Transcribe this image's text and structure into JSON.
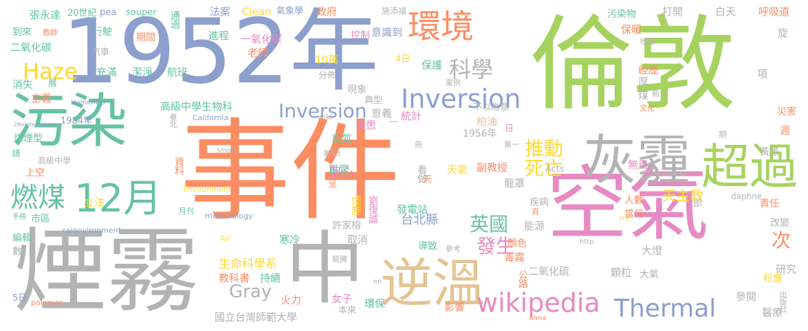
{
  "palette": {
    "blue": "#8c9fcd",
    "green": "#a6d35f",
    "orange": "#fc8d62",
    "pink": "#e68ac3",
    "teal": "#66c2a5",
    "yellow": "#fed92f",
    "tan": "#e5c494",
    "gray": "#b3b3b3"
  },
  "words": [
    "事件",
    "倫敦",
    "1952年",
    "空氣",
    "煙霧",
    "中",
    "污染",
    "逆溫",
    "灰霾",
    "超過",
    "環境",
    "12月",
    "燃煤",
    "wikipedia",
    "Inversion",
    "Thermal",
    "Haze",
    "科學",
    "推動",
    "死亡",
    "英國",
    "發生",
    "Gray",
    "次",
    "天主教",
    "台北縣",
    "聖心",
    "Inversion",
    "高級中學生物科",
    "生命科學系",
    "張永達",
    "20世紀",
    "pea",
    "souper",
    "通過",
    "法案",
    "Clean",
    "氣象學",
    "施添福",
    "政府",
    "污染物",
    "打開",
    "白天",
    "呼吸道",
    "到來",
    "教師",
    "行駛",
    "期間",
    "進程",
    "一氧化碳",
    "控制",
    "意識到",
    "保暖",
    "旋",
    "二氧化碳",
    "汽車",
    "老師",
    "地理",
    "充滿",
    "潔淨",
    "航班",
    "10萬",
    "4日",
    "分佈",
    "保護",
    "項",
    "經歷",
    "消失",
    "層",
    "厚",
    "現象",
    "典型",
    "意義",
    "案例",
    "煤",
    "簡介",
    "主義",
    "Homehttp",
    "統計",
    "不以為意",
    "災害",
    "文化",
    "1984年",
    "28meteorology",
    "罹患",
    "一",
    "wiki",
    "柏油",
    "California",
    "臺北",
    "反氣",
    "週",
    "期",
    "煤煙型",
    "冊",
    "第93",
    "日",
    "1956年",
    "第一",
    "黃黑",
    "無風",
    "請",
    "smog",
    "高級中學",
    "上空",
    "資料",
    "天氣",
    "副教授",
    "Acts",
    "看做",
    "龍罩",
    "天",
    "daphne",
    "部",
    "民眾",
    "呈",
    "人數",
    "當局",
    "Environment",
    "立法",
    "煙塵",
    "責任",
    "劉復誠",
    "疾病",
    "發電站",
    "頁",
    "手冊",
    "市區",
    "meteorology",
    "月刊",
    "許家榕",
    "取消",
    "能源",
    "org",
    "改變",
    "calenvironment",
    "編輯",
    "Air",
    "寒冷",
    "導致",
    "參考",
    "http",
    "數",
    "顏色",
    "毒霧",
    "大燈",
    "研究",
    "龍騰",
    "二氧化硫",
    "顆粒",
    "大氣",
    "粉塵",
    "持續",
    "教科書",
    "公路",
    "參閱",
    "出版社",
    "5日",
    "en",
    "女子",
    "palomar",
    "火力",
    "環保",
    "影響",
    "國立台灣師範大學",
    "本來",
    "htm4",
    "醫療"
  ]
}
